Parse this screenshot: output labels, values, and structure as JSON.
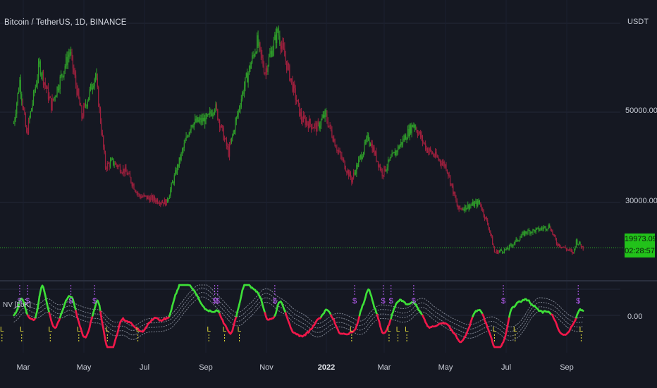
{
  "header": {
    "title": "Bitcoin / TetherUS, 1D, BINANCE"
  },
  "price_axis": {
    "currency": "USDT",
    "ticks": [
      "50000.00",
      "30000.00"
    ],
    "last_price": "19973.09",
    "countdown": "02:28:57"
  },
  "indicator": {
    "label": "NV [LoK]",
    "zero_label": "0.00"
  },
  "time_axis": {
    "labels": [
      "Mar",
      "May",
      "Jul",
      "Sep",
      "Nov",
      "2022",
      "Mar",
      "May",
      "Jul",
      "Sep"
    ]
  },
  "colors": {
    "background": "#151822",
    "bull_candle": "#2f9e2a",
    "bear_candle": "#a0203e",
    "bull_line": "#3ee038",
    "bear_line": "#f0184a",
    "price_badge": "#22c21a",
    "signal_s": "#c060ff",
    "signal_l": "#e8e03a"
  },
  "chart_data": {
    "type": "candlestick",
    "title": "Bitcoin / TetherUS, 1D, BINANCE",
    "y_unit": "USDT",
    "price_anchors": [
      [
        "2021-02-15",
        47500
      ],
      [
        "2021-02-21",
        57000
      ],
      [
        "2021-02-28",
        45000
      ],
      [
        "2021-03-13",
        60500
      ],
      [
        "2021-03-25",
        51500
      ],
      [
        "2021-04-13",
        63500
      ],
      [
        "2021-04-25",
        49000
      ],
      [
        "2021-05-09",
        58500
      ],
      [
        "2021-05-19",
        38000
      ],
      [
        "2021-05-26",
        39000
      ],
      [
        "2021-06-10",
        36500
      ],
      [
        "2021-06-22",
        31500
      ],
      [
        "2021-07-20",
        30000
      ],
      [
        "2021-08-14",
        47500
      ],
      [
        "2021-08-31",
        48500
      ],
      [
        "2021-09-07",
        51500
      ],
      [
        "2021-09-21",
        41000
      ],
      [
        "2021-10-06",
        55000
      ],
      [
        "2021-10-20",
        65500
      ],
      [
        "2021-10-28",
        59000
      ],
      [
        "2021-11-10",
        68000
      ],
      [
        "2021-11-26",
        55000
      ],
      [
        "2021-12-04",
        48500
      ],
      [
        "2021-12-20",
        46500
      ],
      [
        "2021-12-28",
        49500
      ],
      [
        "2022-01-10",
        41500
      ],
      [
        "2022-01-24",
        35000
      ],
      [
        "2022-02-10",
        44500
      ],
      [
        "2022-02-24",
        36500
      ],
      [
        "2022-03-28",
        47500
      ],
      [
        "2022-04-10",
        42000
      ],
      [
        "2022-04-30",
        38000
      ],
      [
        "2022-05-12",
        28500
      ],
      [
        "2022-06-03",
        30000
      ],
      [
        "2022-06-13",
        24000
      ],
      [
        "2022-06-18",
        19000
      ],
      [
        "2022-06-30",
        19500
      ],
      [
        "2022-07-20",
        23500
      ],
      [
        "2022-07-30",
        23800
      ],
      [
        "2022-08-13",
        24800
      ],
      [
        "2022-08-20",
        21000
      ],
      [
        "2022-09-06",
        18800
      ],
      [
        "2022-09-09",
        21500
      ],
      [
        "2022-09-16",
        19973
      ]
    ],
    "indicator": {
      "name": "NV [LoK]",
      "s_signals": [
        "2021-02-21",
        "2021-03-01",
        "2021-04-14",
        "2021-05-08",
        "2021-09-07",
        "2021-09-10",
        "2021-11-07",
        "2022-01-27",
        "2022-02-25",
        "2022-03-05",
        "2022-03-28",
        "2022-06-27",
        "2022-09-11"
      ],
      "l_signals": [
        "2021-02-03",
        "2021-02-23",
        "2021-03-24",
        "2021-04-22",
        "2021-05-21",
        "2021-06-21",
        "2021-09-01",
        "2021-09-17",
        "2021-10-02",
        "2022-01-24",
        "2022-03-03",
        "2022-03-12",
        "2022-03-21",
        "2022-06-18",
        "2022-07-09",
        "2022-09-14"
      ]
    }
  }
}
